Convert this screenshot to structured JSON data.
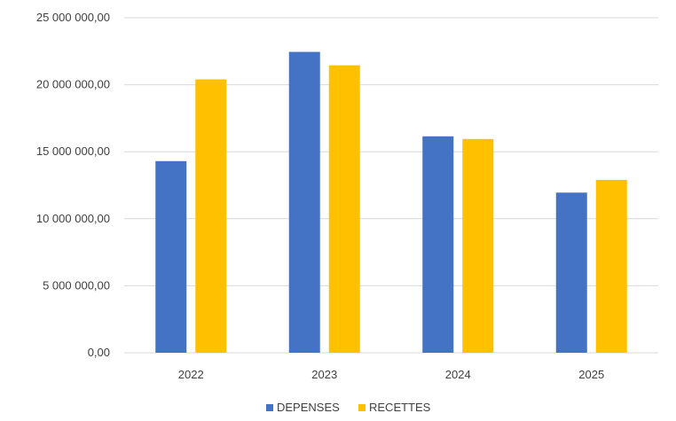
{
  "colors": {
    "depenses": "#4472C4",
    "recettes": "#FFC000",
    "grid": "#D9D9D9",
    "text": "#404040",
    "background": "#FFFFFF"
  },
  "chart_data": {
    "type": "bar",
    "title": "",
    "xlabel": "",
    "ylabel": "",
    "categories": [
      "2022",
      "2023",
      "2024",
      "2025"
    ],
    "series": [
      {
        "name": "DEPENSES",
        "values": [
          14300000,
          22450000,
          16150000,
          11950000
        ]
      },
      {
        "name": "RECETTES",
        "values": [
          20400000,
          21450000,
          15950000,
          12900000
        ]
      }
    ],
    "ylim": [
      0,
      25000000
    ],
    "y_ticks": [
      0,
      5000000,
      10000000,
      15000000,
      20000000,
      25000000
    ],
    "y_tick_labels": [
      "0,00",
      "5 000 000,00",
      "10 000 000,00",
      "15 000 000,00",
      "20 000 000,00",
      "25 000 000,00"
    ],
    "grid": true,
    "legend_position": "bottom"
  }
}
